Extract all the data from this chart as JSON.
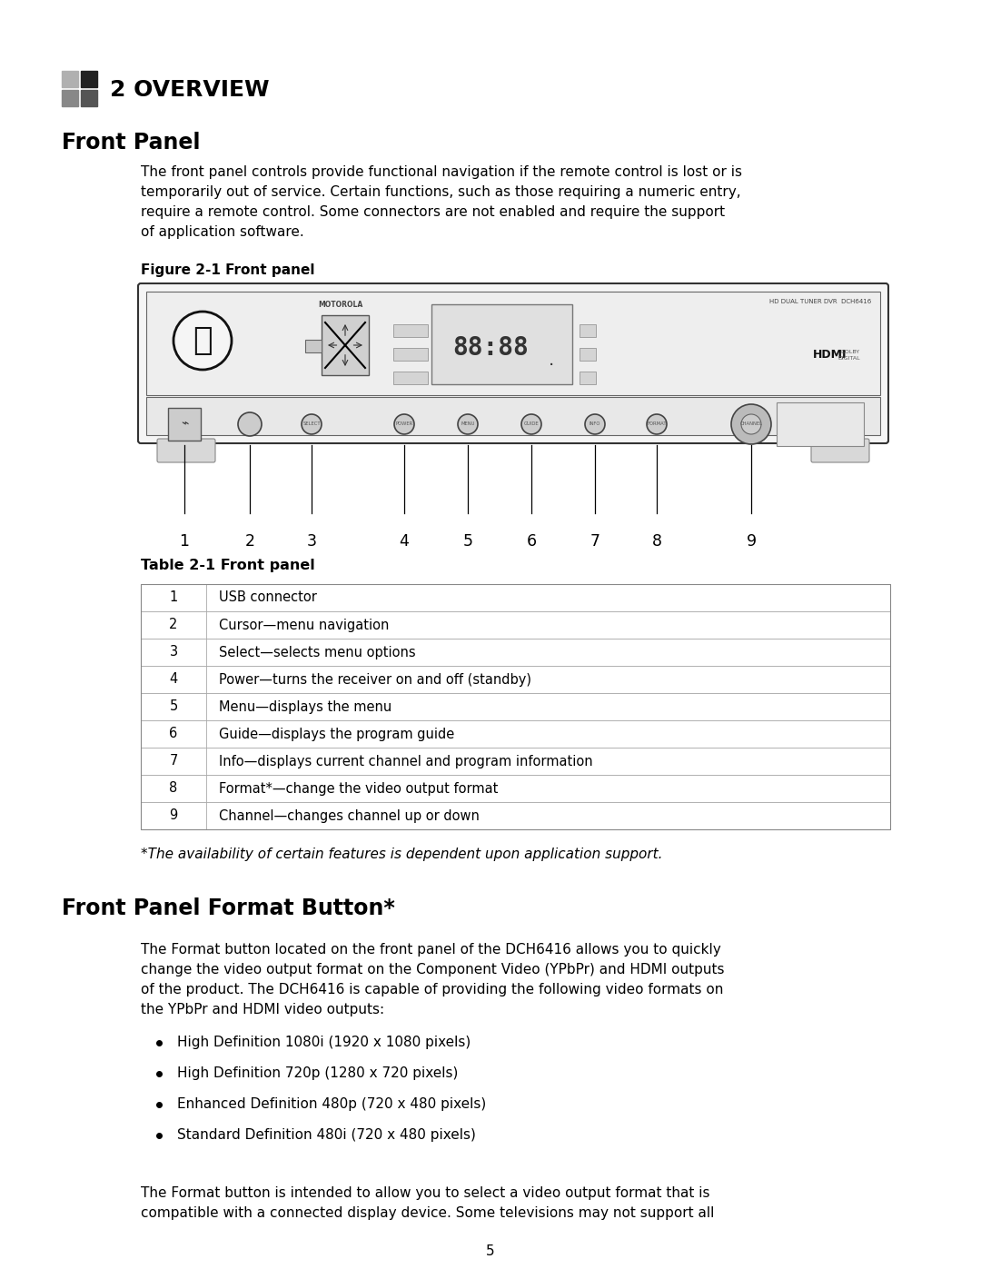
{
  "bg_color": "#ffffff",
  "chapter_title": "2 OVERVIEW",
  "section1_title": "Front Panel",
  "body_text1_lines": [
    "The front panel controls provide functional navigation if the remote control is lost or is",
    "temporarily out of service. Certain functions, such as those requiring a numeric entry,",
    "require a remote control. Some connectors are not enabled and require the support",
    "of application software."
  ],
  "figure_label": "Figure 2-1 Front panel",
  "table_label": "Table 2-1 Front panel",
  "table_rows": [
    [
      "1",
      "USB connector"
    ],
    [
      "2",
      "Cursor—menu navigation"
    ],
    [
      "3",
      "Select—selects menu options"
    ],
    [
      "4",
      "Power—turns the receiver on and off (standby)"
    ],
    [
      "5",
      "Menu—displays the menu"
    ],
    [
      "6",
      "Guide—displays the program guide"
    ],
    [
      "7",
      "Info—displays current channel and program information"
    ],
    [
      "8",
      "Format*—change the video output format"
    ],
    [
      "9",
      "Channel—changes channel up or down"
    ]
  ],
  "footnote": "*The availability of certain features is dependent upon application support.",
  "section2_title": "Front Panel Format Button*",
  "body_text2_lines": [
    "The Format button located on the front panel of the DCH6416 allows you to quickly",
    "change the video output format on the Component Video (YPbPr) and HDMI outputs",
    "of the product. The DCH6416 is capable of providing the following video formats on",
    "the YPbPr and HDMI video outputs:"
  ],
  "bullet_points": [
    "High Definition 1080i (1920 x 1080 pixels)",
    "High Definition 720p (1280 x 720 pixels)",
    "Enhanced Definition 480p (720 x 480 pixels)",
    "Standard Definition 480i (720 x 480 pixels)"
  ],
  "body_text3_lines": [
    "The Format button is intended to allow you to select a video output format that is",
    "compatible with a connected display device. Some televisions may not support all"
  ],
  "page_number": "5",
  "icon_colors": [
    "#b0b0b0",
    "#222222",
    "#888888",
    "#555555"
  ]
}
